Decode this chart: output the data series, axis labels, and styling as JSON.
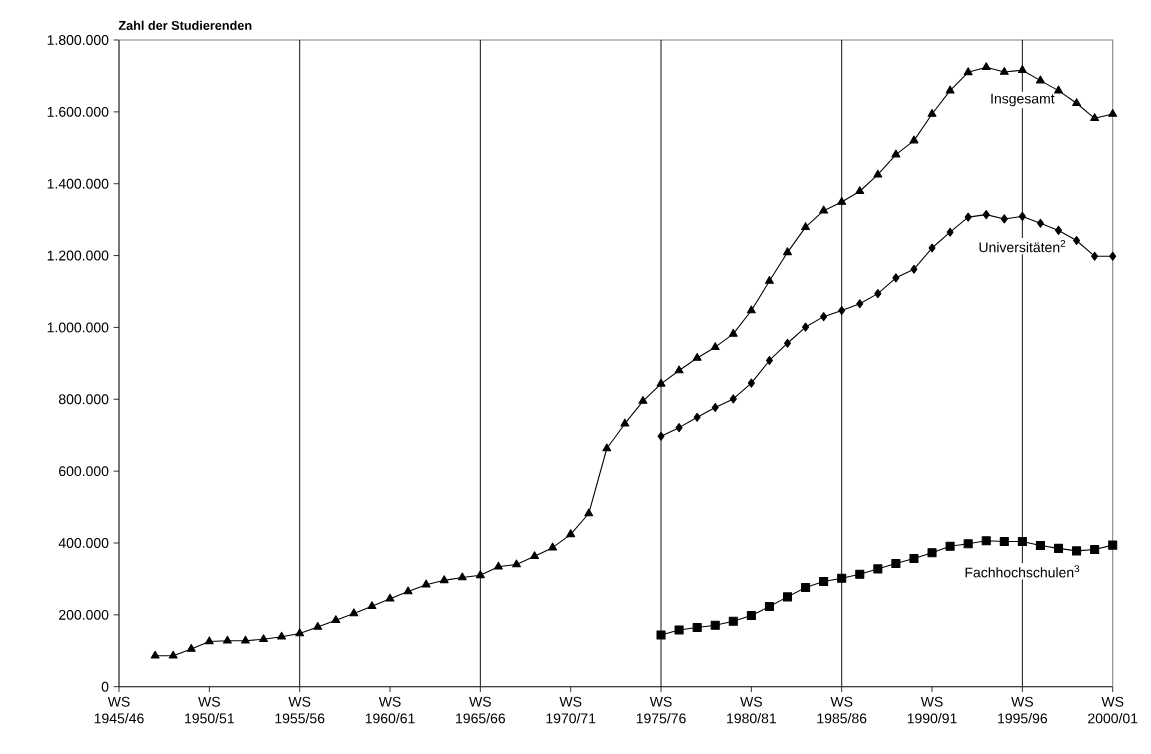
{
  "chart_data": {
    "type": "line",
    "ylabel": "Zahl der Studierenden",
    "categories": [
      "WS 1945/46",
      null,
      null,
      null,
      null,
      "WS 1950/51",
      null,
      null,
      null,
      null,
      "WS 1955/56",
      null,
      null,
      null,
      null,
      "WS 1960/61",
      null,
      null,
      null,
      null,
      "WS 1965/66",
      null,
      null,
      null,
      null,
      "WS 1970/71",
      null,
      null,
      null,
      null,
      "WS 1975/76",
      null,
      null,
      null,
      null,
      "WS 1980/81",
      null,
      null,
      null,
      null,
      "WS 1985/86",
      null,
      null,
      null,
      null,
      "WS 1990/91",
      null,
      null,
      null,
      null,
      "WS 1995/96",
      null,
      null,
      null,
      null,
      "WS 2000/01"
    ],
    "ylim": [
      0,
      1800000
    ],
    "yticks": [
      0,
      {
        "value": 200000,
        "label": "200.000"
      },
      {
        "value": 400000,
        "label": "400.000"
      },
      {
        "value": 600000,
        "label": "600.000"
      },
      {
        "value": 800000,
        "label": "800.000"
      },
      {
        "value": 1000000,
        "label": "1.000.000"
      },
      {
        "value": 1200000,
        "label": "1.200.000"
      },
      {
        "value": 1400000,
        "label": "1.400.000"
      },
      {
        "value": 1600000,
        "label": "1.600.000"
      },
      {
        "value": 1800000,
        "label": "1.800.000"
      }
    ],
    "grid": false,
    "legend": false,
    "line_style": "solid",
    "ref_lines": [
      {
        "axis": "x",
        "value": "WS 1955/56",
        "color": "#000000"
      },
      {
        "axis": "x",
        "value": "WS 1965/66",
        "color": "#000000"
      },
      {
        "axis": "x",
        "value": "WS 1975/76",
        "color": "#000000"
      },
      {
        "axis": "x",
        "value": "WS 1985/86",
        "color": "#000000"
      },
      {
        "axis": "x",
        "value": "WS 1995/96",
        "color": "#000000"
      }
    ],
    "series": [
      {
        "name": "Insgesamt",
        "color": "#000000",
        "marker": "triangle",
        "values": [
          null,
          null,
          86000,
          86000,
          105000,
          126000,
          128000,
          128000,
          132000,
          139000,
          148000,
          166000,
          185000,
          204000,
          224000,
          245000,
          265000,
          284000,
          296000,
          304000,
          310000,
          334000,
          340000,
          363000,
          387000,
          424000,
          482000,
          663000,
          732000,
          795000,
          843000,
          880000,
          915000,
          945000,
          982000,
          1047000,
          1129000,
          1209000,
          1279000,
          1325000,
          1349000,
          1379000,
          1425000,
          1481000,
          1520000,
          1594000,
          1659000,
          1710000,
          1724000,
          1711000,
          1716000,
          1687000,
          1659000,
          1624000,
          1582000,
          1594000
        ]
      },
      {
        "name": "Universitäten$^{2}$",
        "color": "#000000",
        "marker": "diamond",
        "values": [
          null,
          null,
          null,
          null,
          null,
          null,
          null,
          null,
          null,
          null,
          null,
          null,
          null,
          null,
          null,
          null,
          null,
          null,
          null,
          null,
          null,
          null,
          null,
          null,
          null,
          null,
          null,
          null,
          null,
          null,
          697000,
          721000,
          750000,
          777000,
          801000,
          845000,
          908000,
          956000,
          1001000,
          1030000,
          1047000,
          1066000,
          1094000,
          1138000,
          1162000,
          1221000,
          1265000,
          1307000,
          1314000,
          1302000,
          1309000,
          1290000,
          1270000,
          1242000,
          1198000,
          1198000
        ]
      },
      {
        "name": "Fachhochschulen$^{3}$",
        "color": "#000000",
        "marker": "square",
        "values": [
          null,
          null,
          null,
          null,
          null,
          null,
          null,
          null,
          null,
          null,
          null,
          null,
          null,
          null,
          null,
          null,
          null,
          null,
          null,
          null,
          null,
          null,
          null,
          null,
          null,
          null,
          null,
          null,
          null,
          null,
          144000,
          158000,
          165000,
          171000,
          182000,
          198000,
          223000,
          250000,
          276000,
          293000,
          302000,
          313000,
          328000,
          343000,
          357000,
          373000,
          391000,
          398000,
          406000,
          404000,
          404000,
          393000,
          385000,
          378000,
          382000,
          394000
        ]
      }
    ]
  }
}
